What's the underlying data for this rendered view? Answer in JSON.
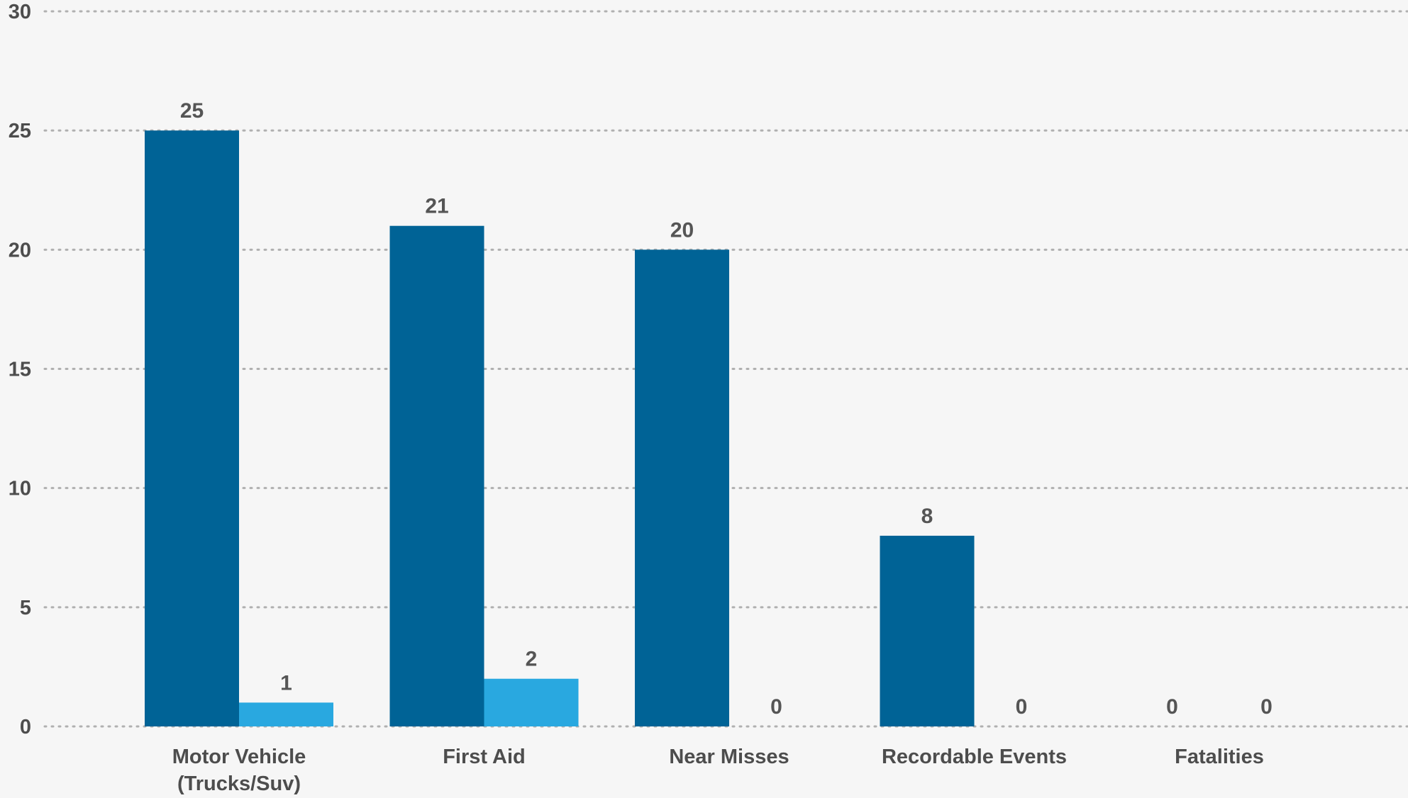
{
  "chart_data": {
    "type": "bar",
    "title": "",
    "xlabel": "",
    "ylabel": "",
    "categories": [
      [
        "Motor Vehicle",
        "(Trucks/Suv)"
      ],
      [
        "First Aid"
      ],
      [
        "Near Misses"
      ],
      [
        "Recordable Events"
      ],
      [
        "Fatalities"
      ]
    ],
    "series": [
      {
        "color": "#006396",
        "values": [
          25,
          21,
          20,
          8,
          0
        ]
      },
      {
        "color": "#29a8e0",
        "values": [
          1,
          2,
          0,
          0,
          0
        ]
      }
    ],
    "ylim": [
      0,
      30
    ],
    "yticks": [
      0,
      5,
      10,
      15,
      20,
      25,
      30
    ],
    "grid": true,
    "legend": "none"
  }
}
